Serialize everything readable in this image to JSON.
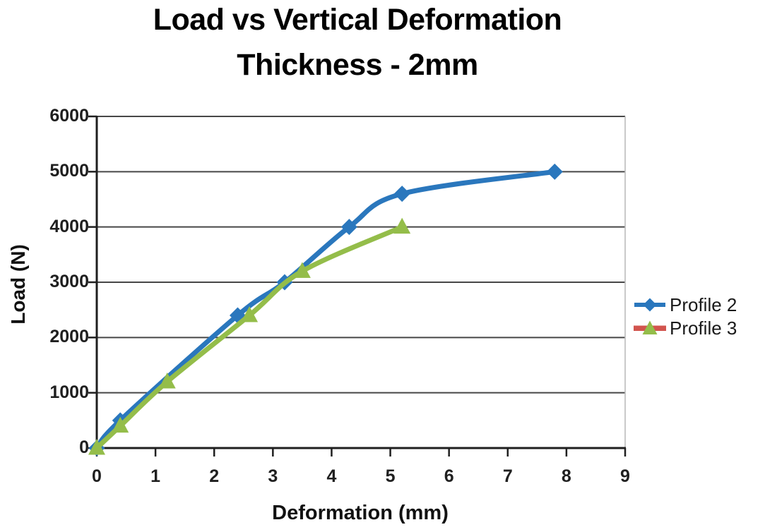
{
  "chart_data": {
    "type": "line",
    "title": "Load vs Vertical Deformation",
    "subtitle": "Thickness - 2mm",
    "xlabel": "Deformation (mm)",
    "ylabel": "Load (N)",
    "xlim": [
      0,
      9
    ],
    "ylim": [
      0,
      6000
    ],
    "xticks": [
      0,
      1,
      2,
      3,
      4,
      5,
      6,
      7,
      8,
      9
    ],
    "yticks": [
      0,
      1000,
      2000,
      3000,
      4000,
      5000,
      6000
    ],
    "grid": "horizontal-only",
    "legend_position": "right",
    "series": [
      {
        "name": "Profile 2",
        "marker": "diamond",
        "line_color": "#2A77BD",
        "marker_color": "#2A77BD",
        "legend_line_color": "#2A77BD",
        "points": [
          [
            0,
            0
          ],
          [
            0.4,
            500
          ],
          [
            2.4,
            2400
          ],
          [
            3.2,
            3000
          ],
          [
            4.3,
            4000
          ],
          [
            5.2,
            4600
          ],
          [
            7.8,
            5000
          ]
        ]
      },
      {
        "name": "Profile 3",
        "marker": "triangle-up",
        "line_color": "#94BD4A",
        "marker_color": "#94BD4A",
        "legend_line_color": "#D2544E",
        "points": [
          [
            0,
            0
          ],
          [
            0.4,
            400
          ],
          [
            1.2,
            1200
          ],
          [
            2.6,
            2400
          ],
          [
            3.5,
            3200
          ],
          [
            5.2,
            4000
          ]
        ]
      }
    ],
    "colors": {
      "background": "#FFFFFF",
      "gridline": "#474747",
      "axis": "#1F1F1F",
      "tick_text": "#1F1F1F",
      "title_text": "#000000",
      "plot_right_border": "#B7B7B7"
    }
  }
}
